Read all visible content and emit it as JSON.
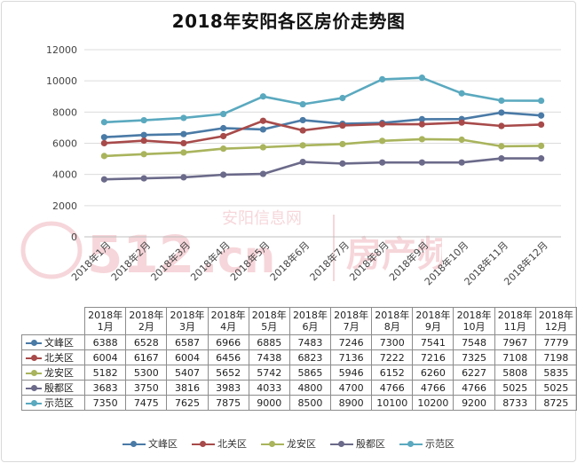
{
  "title": "2018年安阳各区房价走势图",
  "watermark_text": [
    "安阳信息网",
    "房产频道",
    ".cn"
  ],
  "chart_data": {
    "type": "line",
    "title": "2018年安阳各区房价走势图",
    "categories": [
      "2018年1月",
      "2018年2月",
      "2018年3月",
      "2018年4月",
      "2018年5月",
      "2018年6月",
      "2018年7月",
      "2018年8月",
      "2018年9月",
      "2018年10月",
      "2018年11月",
      "2018年12月"
    ],
    "table_headers": [
      [
        "2018年",
        "1月"
      ],
      [
        "2018年",
        "2月"
      ],
      [
        "2018年",
        "3月"
      ],
      [
        "2018年",
        "4月"
      ],
      [
        "2018年",
        "5月"
      ],
      [
        "2018年",
        "6月"
      ],
      [
        "2018年",
        "7月"
      ],
      [
        "2018年",
        "8月"
      ],
      [
        "2018年",
        "9月"
      ],
      [
        "2018年",
        "10月"
      ],
      [
        "2018年",
        "11月"
      ],
      [
        "2018年",
        "12月"
      ]
    ],
    "ylim": [
      0,
      12000
    ],
    "yticks": [
      "0",
      "2000",
      "4000",
      "6000",
      "8000",
      "10000",
      "12000"
    ],
    "grid": true,
    "legend_position": "bottom",
    "series": [
      {
        "name": "文峰区",
        "color": "#4a7aa6",
        "values": [
          6388,
          6528,
          6587,
          6966,
          6885,
          7483,
          7246,
          7300,
          7541,
          7548,
          7967,
          7779
        ]
      },
      {
        "name": "北关区",
        "color": "#a84a4a",
        "values": [
          6004,
          6167,
          6004,
          6456,
          7438,
          6823,
          7136,
          7222,
          7216,
          7325,
          7108,
          7198
        ]
      },
      {
        "name": "龙安区",
        "color": "#a9b45c",
        "values": [
          5182,
          5300,
          5407,
          5652,
          5742,
          5865,
          5946,
          6152,
          6260,
          6227,
          5808,
          5835
        ]
      },
      {
        "name": "殷都区",
        "color": "#6b6a8a",
        "values": [
          3683,
          3750,
          3816,
          3983,
          4033,
          4800,
          4700,
          4766,
          4766,
          4766,
          5025,
          5025
        ]
      },
      {
        "name": "示范区",
        "color": "#5aa9bf",
        "values": [
          7350,
          7475,
          7625,
          7875,
          9000,
          8500,
          8900,
          10100,
          10200,
          9200,
          8733,
          8725
        ]
      }
    ]
  }
}
